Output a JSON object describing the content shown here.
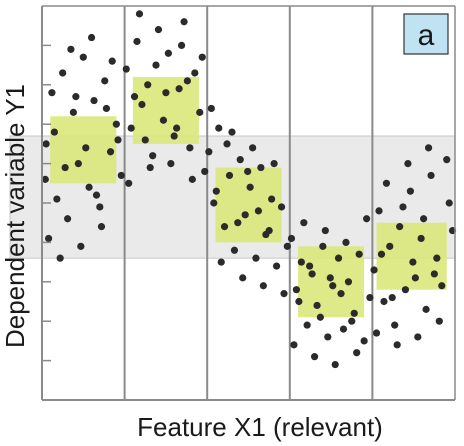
{
  "chart_data": {
    "type": "scatter",
    "title": "",
    "xlabel": "Feature X1 (relevant)",
    "ylabel": "Dependent variable Y1",
    "xlim": [
      0,
      5
    ],
    "ylim": [
      0,
      10
    ],
    "grid": {
      "vertical_lines": [
        1,
        2,
        3,
        4
      ]
    },
    "panel_label": "a",
    "colors": {
      "points": "#2b2b2b",
      "bin_box": "#d9e87a",
      "band": "#e6e6e6",
      "axis": "#8a8a8a",
      "label_box": "#bfe3f2"
    },
    "reference_band": {
      "y_min": 3.6,
      "y_max": 6.7
    },
    "bins": [
      {
        "x_min": 0.1,
        "x_max": 0.9,
        "y_min": 5.5,
        "y_max": 7.2
      },
      {
        "x_min": 1.1,
        "x_max": 1.9,
        "y_min": 6.5,
        "y_max": 8.2
      },
      {
        "x_min": 2.1,
        "x_max": 2.9,
        "y_min": 4.0,
        "y_max": 5.9
      },
      {
        "x_min": 3.1,
        "x_max": 3.9,
        "y_min": 2.1,
        "y_max": 3.9
      },
      {
        "x_min": 4.05,
        "x_max": 4.9,
        "y_min": 2.8,
        "y_max": 4.5
      }
    ],
    "points": [
      [
        0.05,
        6.5
      ],
      [
        0.12,
        7.8
      ],
      [
        0.18,
        5.1
      ],
      [
        0.25,
        8.3
      ],
      [
        0.31,
        4.6
      ],
      [
        0.38,
        7.3
      ],
      [
        0.44,
        6.0
      ],
      [
        0.5,
        8.7
      ],
      [
        0.57,
        5.4
      ],
      [
        0.63,
        7.6
      ],
      [
        0.7,
        4.9
      ],
      [
        0.76,
        8.1
      ],
      [
        0.83,
        6.3
      ],
      [
        0.9,
        7.0
      ],
      [
        0.96,
        5.7
      ],
      [
        0.08,
        4.1
      ],
      [
        0.22,
        3.6
      ],
      [
        0.35,
        8.9
      ],
      [
        0.47,
        3.9
      ],
      [
        0.6,
        9.2
      ],
      [
        0.72,
        4.4
      ],
      [
        0.85,
        8.6
      ],
      [
        0.15,
        6.8
      ],
      [
        0.28,
        5.9
      ],
      [
        0.41,
        7.7
      ],
      [
        0.53,
        6.4
      ],
      [
        0.66,
        5.2
      ],
      [
        0.78,
        7.4
      ],
      [
        0.92,
        6.6
      ],
      [
        0.04,
        5.6
      ],
      [
        1.02,
        8.4
      ],
      [
        1.08,
        6.9
      ],
      [
        1.15,
        9.1
      ],
      [
        1.21,
        7.5
      ],
      [
        1.28,
        8.0
      ],
      [
        1.34,
        6.2
      ],
      [
        1.41,
        9.4
      ],
      [
        1.47,
        7.1
      ],
      [
        1.53,
        8.8
      ],
      [
        1.6,
        6.7
      ],
      [
        1.66,
        7.9
      ],
      [
        1.72,
        9.6
      ],
      [
        1.79,
        6.4
      ],
      [
        1.85,
        8.3
      ],
      [
        1.91,
        7.3
      ],
      [
        1.97,
        5.8
      ],
      [
        1.05,
        5.5
      ],
      [
        1.18,
        9.8
      ],
      [
        1.31,
        5.9
      ],
      [
        1.44,
        10.3
      ],
      [
        1.56,
        6.0
      ],
      [
        1.69,
        9.0
      ],
      [
        1.82,
        5.6
      ],
      [
        1.94,
        8.7
      ],
      [
        1.12,
        7.7
      ],
      [
        1.25,
        6.6
      ],
      [
        1.38,
        8.5
      ],
      [
        1.5,
        7.8
      ],
      [
        1.63,
        6.9
      ],
      [
        1.76,
        8.1
      ],
      [
        2.02,
        6.3
      ],
      [
        2.08,
        5.0
      ],
      [
        2.14,
        6.9
      ],
      [
        2.21,
        4.4
      ],
      [
        2.27,
        5.7
      ],
      [
        2.33,
        3.8
      ],
      [
        2.4,
        6.1
      ],
      [
        2.46,
        4.7
      ],
      [
        2.52,
        5.4
      ],
      [
        2.59,
        3.6
      ],
      [
        2.65,
        5.9
      ],
      [
        2.71,
        4.2
      ],
      [
        2.78,
        5.1
      ],
      [
        2.84,
        3.4
      ],
      [
        2.9,
        4.9
      ],
      [
        2.97,
        3.9
      ],
      [
        2.05,
        7.4
      ],
      [
        2.17,
        3.5
      ],
      [
        2.3,
        6.8
      ],
      [
        2.43,
        3.1
      ],
      [
        2.55,
        6.4
      ],
      [
        2.68,
        2.9
      ],
      [
        2.81,
        6.0
      ],
      [
        2.93,
        2.7
      ],
      [
        2.11,
        5.3
      ],
      [
        2.24,
        6.5
      ],
      [
        2.37,
        4.5
      ],
      [
        2.49,
        5.8
      ],
      [
        2.62,
        4.8
      ],
      [
        2.75,
        4.3
      ],
      [
        3.02,
        4.1
      ],
      [
        3.08,
        2.8
      ],
      [
        3.14,
        3.5
      ],
      [
        3.21,
        1.9
      ],
      [
        3.27,
        3.2
      ],
      [
        3.33,
        2.4
      ],
      [
        3.4,
        3.9
      ],
      [
        3.46,
        1.6
      ],
      [
        3.52,
        2.9
      ],
      [
        3.59,
        3.6
      ],
      [
        3.65,
        1.8
      ],
      [
        3.71,
        3.0
      ],
      [
        3.78,
        2.2
      ],
      [
        3.84,
        3.7
      ],
      [
        3.9,
        1.5
      ],
      [
        3.97,
        2.6
      ],
      [
        3.05,
        1.4
      ],
      [
        3.17,
        4.5
      ],
      [
        3.3,
        1.1
      ],
      [
        3.43,
        4.3
      ],
      [
        3.55,
        0.9
      ],
      [
        3.68,
        4.0
      ],
      [
        3.81,
        1.2
      ],
      [
        3.93,
        4.6
      ],
      [
        3.11,
        2.5
      ],
      [
        3.24,
        3.4
      ],
      [
        3.37,
        2.1
      ],
      [
        3.49,
        3.1
      ],
      [
        3.62,
        2.7
      ],
      [
        3.75,
        2.0
      ],
      [
        4.02,
        3.3
      ],
      [
        4.08,
        4.8
      ],
      [
        4.14,
        2.5
      ],
      [
        4.21,
        3.9
      ],
      [
        4.27,
        1.9
      ],
      [
        4.33,
        4.4
      ],
      [
        4.4,
        2.8
      ],
      [
        4.46,
        5.3
      ],
      [
        4.52,
        3.1
      ],
      [
        4.59,
        4.1
      ],
      [
        4.65,
        2.3
      ],
      [
        4.71,
        5.7
      ],
      [
        4.78,
        3.6
      ],
      [
        4.84,
        2.9
      ],
      [
        4.9,
        6.1
      ],
      [
        4.97,
        4.3
      ],
      [
        4.05,
        1.7
      ],
      [
        4.17,
        5.5
      ],
      [
        4.3,
        1.4
      ],
      [
        4.43,
        6.0
      ],
      [
        4.55,
        1.6
      ],
      [
        4.68,
        6.4
      ],
      [
        4.81,
        2.0
      ],
      [
        4.93,
        5.0
      ],
      [
        4.11,
        3.7
      ],
      [
        4.24,
        2.6
      ],
      [
        4.37,
        4.9
      ],
      [
        4.49,
        3.5
      ],
      [
        4.62,
        4.6
      ],
      [
        4.75,
        3.2
      ]
    ]
  }
}
